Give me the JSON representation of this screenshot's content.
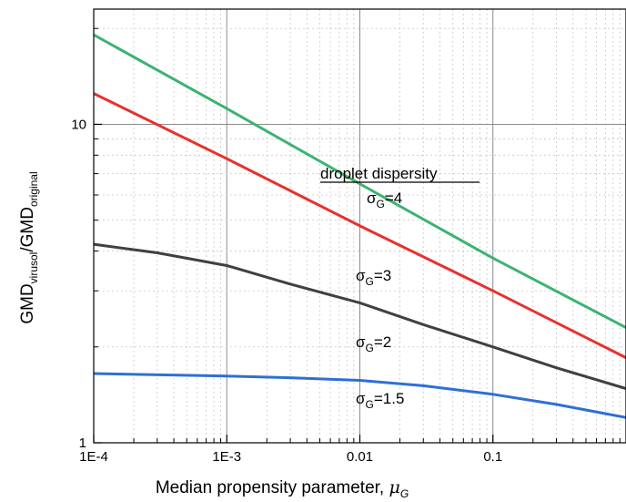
{
  "chart_data": {
    "type": "line",
    "xscale": "log",
    "yscale": "log",
    "xlim": [
      0.0001,
      1
    ],
    "ylim": [
      1,
      23
    ],
    "grid": true,
    "xlabel": "Median propensity parameter, ",
    "xlabel_symbol": "μ",
    "xlabel_symbol_sub": "G",
    "ylabel_main1": "GMD",
    "ylabel_sub1": "virusol",
    "ylabel_main2": "/GMD",
    "ylabel_sub2": "original",
    "x_ticks": [
      {
        "value": 0.0001,
        "label": "1E-4"
      },
      {
        "value": 0.001,
        "label": "1E-3"
      },
      {
        "value": 0.01,
        "label": "0.01"
      },
      {
        "value": 0.1,
        "label": "0.1"
      }
    ],
    "y_ticks": [
      {
        "value": 1,
        "label": "1"
      },
      {
        "value": 10,
        "label": "10"
      }
    ],
    "annotation_title": "droplet dispersity",
    "series": [
      {
        "label_sym": "σ",
        "label_sub": "G",
        "label_val": "=4",
        "color": "#3cb371",
        "x": [
          0.0001,
          0.001,
          0.01,
          0.1,
          1
        ],
        "y": [
          19.1,
          11.2,
          6.5,
          3.8,
          2.3
        ]
      },
      {
        "label_sym": "σ",
        "label_sub": "G",
        "label_val": "=3",
        "color": "#e8302e",
        "x": [
          0.0001,
          0.001,
          0.01,
          0.1,
          1
        ],
        "y": [
          12.5,
          7.8,
          4.8,
          3.0,
          1.85
        ]
      },
      {
        "label_sym": "σ",
        "label_sub": "G",
        "label_val": "=2",
        "color": "#404040",
        "x": [
          0.0001,
          0.0003,
          0.001,
          0.003,
          0.01,
          0.03,
          0.1,
          0.3,
          1
        ],
        "y": [
          4.2,
          3.95,
          3.6,
          3.15,
          2.75,
          2.35,
          2.0,
          1.72,
          1.48
        ]
      },
      {
        "label_sym": "σ",
        "label_sub": "G",
        "label_val": "=1.5",
        "color": "#2e6fd6",
        "x": [
          0.0001,
          0.001,
          0.003,
          0.01,
          0.03,
          0.1,
          0.3,
          1
        ],
        "y": [
          1.65,
          1.62,
          1.6,
          1.57,
          1.51,
          1.42,
          1.32,
          1.2
        ]
      }
    ]
  }
}
